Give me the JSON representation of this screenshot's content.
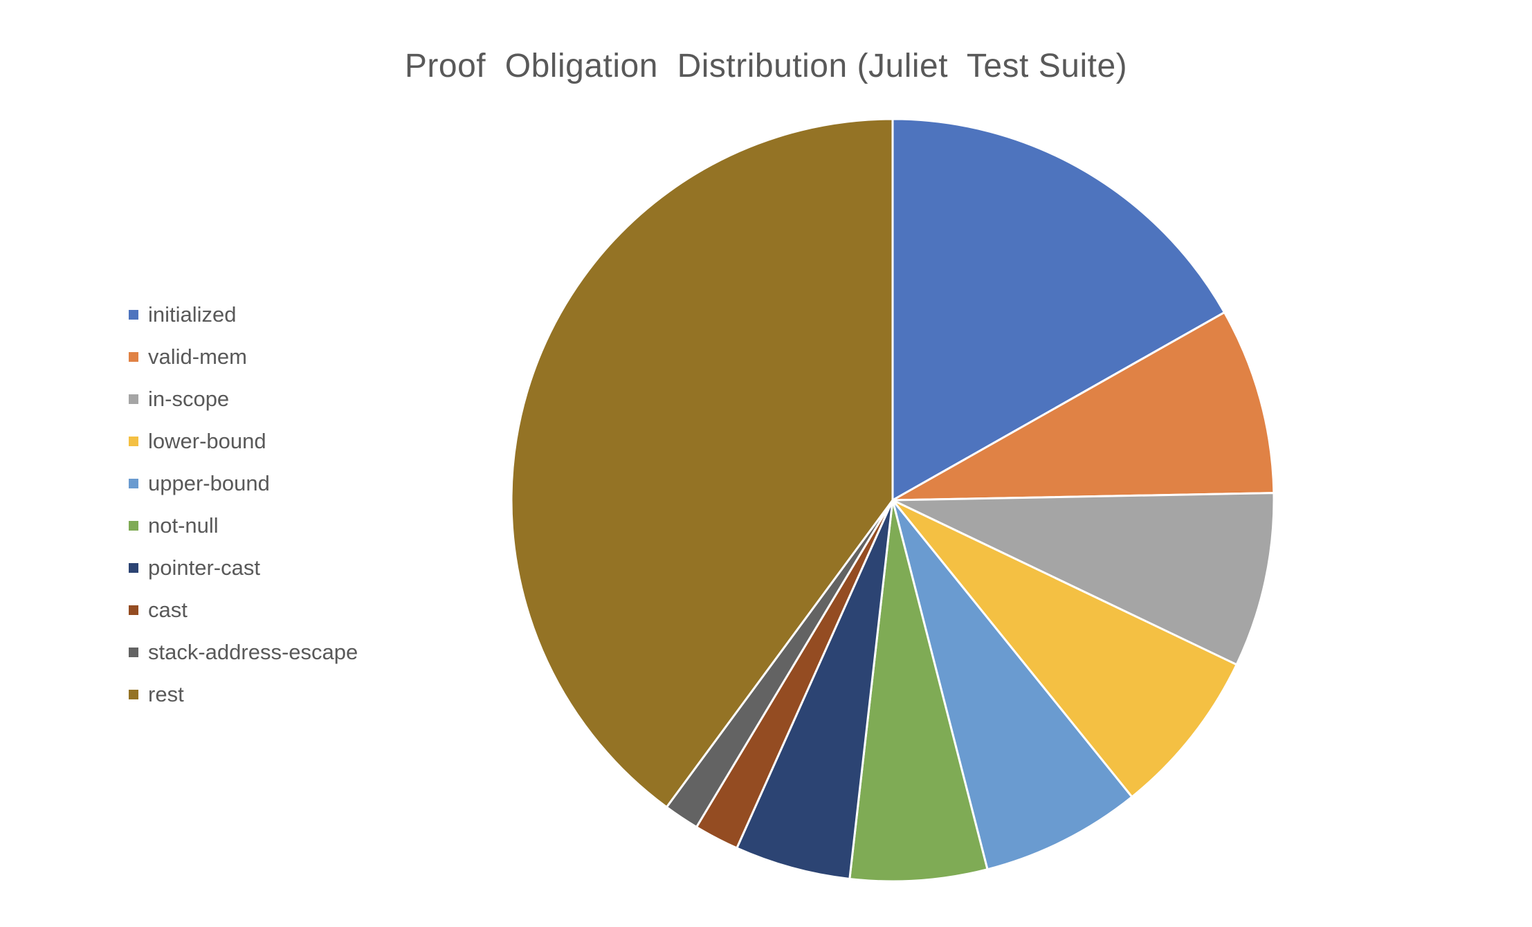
{
  "chart_data": {
    "type": "pie",
    "title": "Proof  Obligation  Distribution (Juliet  Test Suite)",
    "start_angle": "12 o'clock",
    "direction": "clockwise",
    "legend_position": "left",
    "slices": [
      {
        "label": "initialized",
        "value": 16.8,
        "color": "#4E74BE"
      },
      {
        "label": "valid-mem",
        "value": 7.9,
        "color": "#E08245"
      },
      {
        "label": "in-scope",
        "value": 7.4,
        "color": "#A5A5A5"
      },
      {
        "label": "lower-bound",
        "value": 7.1,
        "color": "#F4C043"
      },
      {
        "label": "upper-bound",
        "value": 6.8,
        "color": "#6A9BD0"
      },
      {
        "label": "not-null",
        "value": 5.8,
        "color": "#7FAB55"
      },
      {
        "label": "pointer-cast",
        "value": 4.9,
        "color": "#2C4473"
      },
      {
        "label": "cast",
        "value": 1.9,
        "color": "#944C22"
      },
      {
        "label": "stack-address-escape",
        "value": 1.5,
        "color": "#636363"
      },
      {
        "label": "rest",
        "value": 39.9,
        "color": "#947325"
      }
    ]
  }
}
